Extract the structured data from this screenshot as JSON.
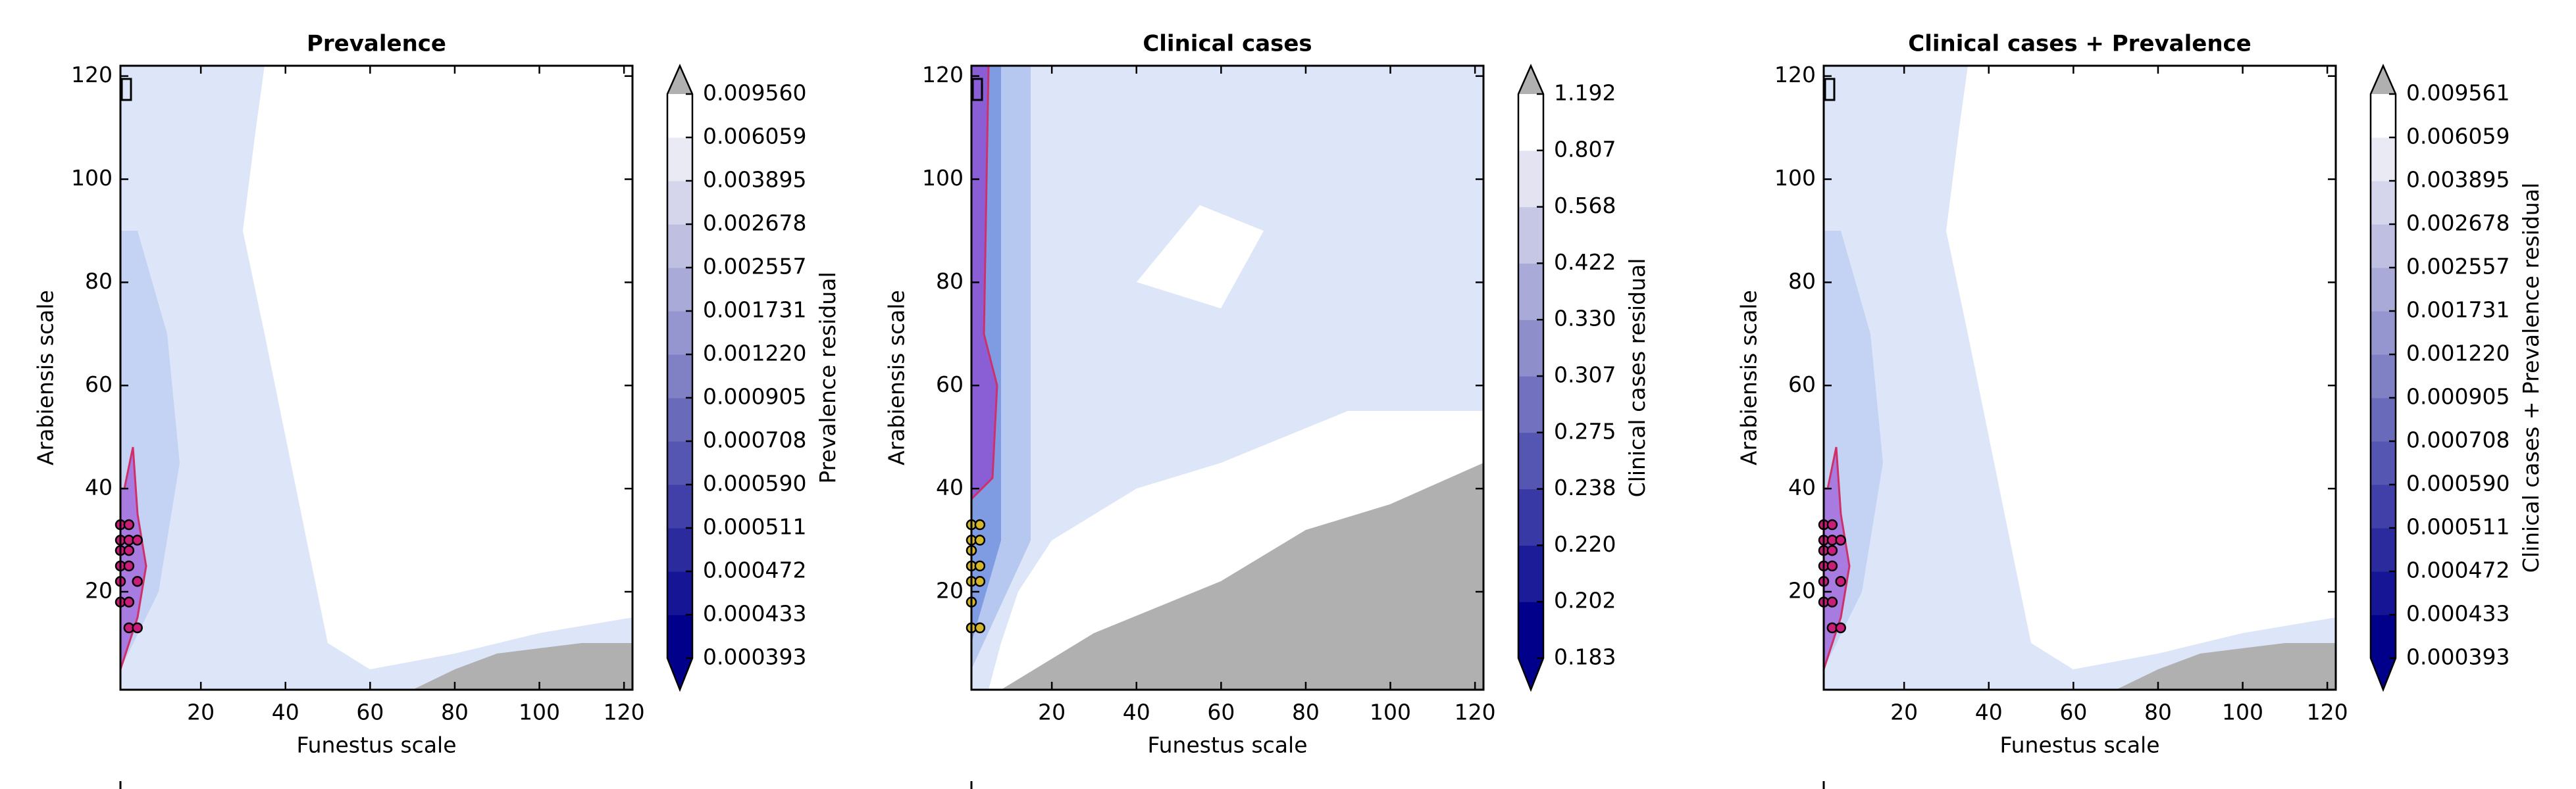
{
  "chart_data": [
    {
      "type": "contour",
      "title": "Prevalence",
      "x_label": "Funestus scale",
      "y_label": "Arabiensis scale",
      "xlim": [
        1,
        122
      ],
      "ylim": [
        1,
        122
      ],
      "xticks": [
        20,
        40,
        60,
        80,
        100,
        120
      ],
      "yticks": [
        20,
        40,
        60,
        80,
        100,
        120
      ],
      "colorbar": {
        "label": "Prevalence residual",
        "low_color": "#00008b",
        "high_color": "#ffffff",
        "over_color": "#b0b0b0",
        "ticks": [
          0.000393,
          0.000433,
          0.000472,
          0.000511,
          {
            "value": 0.00059,
            "label": "0.000590"
          },
          0.000708,
          0.000905,
          {
            "value": 0.00122,
            "label": "0.001220"
          },
          0.001731,
          0.002557,
          0.002678,
          0.003895,
          0.006059,
          {
            "value": 0.00956,
            "label": "0.009560"
          }
        ]
      },
      "markers": {
        "color": "#c81e78",
        "x": [
          1,
          3,
          1,
          3,
          5,
          1,
          3,
          1,
          3,
          1,
          5,
          1,
          3,
          3,
          5
        ],
        "y": [
          33,
          33,
          30,
          30,
          30,
          28,
          28,
          25,
          25,
          22,
          22,
          18,
          18,
          13,
          13
        ]
      }
    },
    {
      "type": "contour",
      "title": "Clinical cases",
      "x_label": "Funestus scale",
      "y_label": "Arabiensis scale",
      "xlim": [
        1,
        122
      ],
      "ylim": [
        1,
        122
      ],
      "xticks": [
        20,
        40,
        60,
        80,
        100,
        120
      ],
      "yticks": [
        20,
        40,
        60,
        80,
        100,
        120
      ],
      "colorbar": {
        "label": "Clinical cases residual",
        "low_color": "#00008b",
        "high_color": "#ffffff",
        "over_color": "#b0b0b0",
        "ticks": [
          0.183,
          0.202,
          {
            "value": 0.22,
            "label": "0.220"
          },
          0.238,
          0.275,
          0.307,
          {
            "value": 0.33,
            "label": "0.330"
          },
          0.422,
          0.568,
          0.807,
          1.192
        ]
      },
      "markers": {
        "color": "#d4b62a",
        "x": [
          1,
          3,
          1,
          3,
          1,
          1,
          3,
          1,
          3,
          1,
          1,
          3
        ],
        "y": [
          33,
          33,
          30,
          30,
          28,
          25,
          25,
          22,
          22,
          18,
          13,
          13
        ]
      }
    },
    {
      "type": "contour",
      "title": "Clinical cases + Prevalence",
      "x_label": "Funestus scale",
      "y_label": "Arabiensis scale",
      "xlim": [
        1,
        122
      ],
      "ylim": [
        1,
        122
      ],
      "xticks": [
        20,
        40,
        60,
        80,
        100,
        120
      ],
      "yticks": [
        20,
        40,
        60,
        80,
        100,
        120
      ],
      "colorbar": {
        "label": "Clinical cases + Prevalence residual",
        "low_color": "#00008b",
        "high_color": "#ffffff",
        "over_color": "#b0b0b0",
        "ticks": [
          0.000393,
          0.000433,
          0.000472,
          0.000511,
          {
            "value": 0.00059,
            "label": "0.000590"
          },
          0.000708,
          0.000905,
          {
            "value": 0.00122,
            "label": "0.001220"
          },
          0.001731,
          0.002557,
          0.002678,
          0.003895,
          0.006059,
          0.009561
        ]
      },
      "markers": {
        "color": "#c81e78",
        "x": [
          1,
          3,
          1,
          3,
          5,
          1,
          3,
          1,
          3,
          1,
          5,
          1,
          3,
          3,
          5
        ],
        "y": [
          33,
          33,
          30,
          30,
          30,
          28,
          28,
          25,
          25,
          22,
          22,
          18,
          18,
          13,
          13
        ]
      }
    }
  ]
}
